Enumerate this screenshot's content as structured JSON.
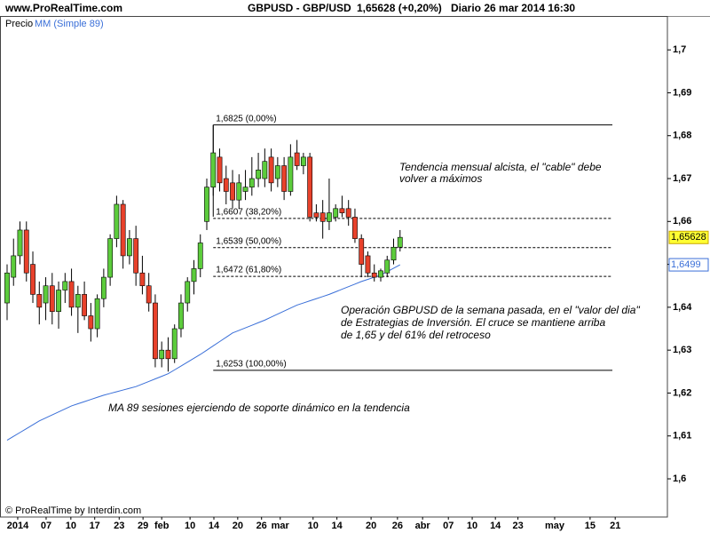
{
  "header": {
    "site": "www.ProRealTime.com",
    "instrument": "GBPUSD - GBP/USD",
    "quote": "1,65628 (+0,20%)",
    "period": "Diario  26 mar 2014 16:30"
  },
  "footer": "© ProRealTime by Interdin.com",
  "chart_data": {
    "type": "candlestick",
    "legend": {
      "price": "Precio",
      "ma": "MM (Simple 89)"
    },
    "x": [
      0,
      1,
      2,
      3,
      4,
      5,
      6,
      7,
      8,
      9,
      10,
      11,
      12,
      13,
      14,
      15,
      16,
      17,
      18,
      19,
      20,
      21,
      22,
      23,
      24,
      25,
      26,
      27,
      28,
      29,
      30,
      31,
      32,
      33,
      34,
      35,
      36,
      37,
      38,
      39,
      40,
      41,
      42,
      43,
      44,
      45,
      46,
      47,
      48,
      49,
      50,
      51,
      52,
      53,
      54,
      55,
      56,
      57,
      58,
      59,
      60,
      61
    ],
    "open": [
      1.641,
      1.647,
      1.652,
      1.658,
      1.65,
      1.643,
      1.641,
      1.645,
      1.639,
      1.644,
      1.646,
      1.64,
      1.643,
      1.638,
      1.635,
      1.642,
      1.647,
      1.656,
      1.664,
      1.652,
      1.656,
      1.648,
      1.645,
      1.641,
      1.628,
      1.63,
      1.628,
      1.635,
      1.641,
      1.646,
      1.649,
      1.66,
      1.668,
      1.675,
      1.67,
      1.669,
      1.665,
      1.667,
      1.668,
      1.67,
      1.67,
      1.675,
      1.67,
      1.673,
      1.667,
      1.676,
      1.673,
      1.675,
      1.662,
      1.662,
      1.66,
      1.661,
      1.663,
      1.663,
      1.661,
      1.656,
      1.652,
      1.648,
      1.647,
      1.648,
      1.651,
      1.654
    ],
    "high": [
      1.65,
      1.656,
      1.66,
      1.66,
      1.653,
      1.646,
      1.647,
      1.648,
      1.646,
      1.648,
      1.649,
      1.645,
      1.646,
      1.641,
      1.643,
      1.649,
      1.657,
      1.666,
      1.665,
      1.658,
      1.659,
      1.652,
      1.648,
      1.643,
      1.632,
      1.633,
      1.636,
      1.643,
      1.647,
      1.651,
      1.657,
      1.67,
      1.6825,
      1.677,
      1.673,
      1.672,
      1.671,
      1.672,
      1.675,
      1.676,
      1.677,
      1.677,
      1.675,
      1.675,
      1.678,
      1.679,
      1.676,
      1.676,
      1.664,
      1.665,
      1.67,
      1.664,
      1.666,
      1.665,
      1.663,
      1.657,
      1.653,
      1.65,
      1.649,
      1.652,
      1.656,
      1.658
    ],
    "low": [
      1.637,
      1.645,
      1.65,
      1.646,
      1.641,
      1.636,
      1.637,
      1.636,
      1.635,
      1.641,
      1.638,
      1.634,
      1.637,
      1.632,
      1.633,
      1.64,
      1.645,
      1.654,
      1.649,
      1.65,
      1.645,
      1.643,
      1.639,
      1.626,
      1.626,
      1.625,
      1.627,
      1.633,
      1.639,
      1.643,
      1.647,
      1.658,
      1.666,
      1.667,
      1.664,
      1.663,
      1.663,
      1.665,
      1.666,
      1.668,
      1.668,
      1.667,
      1.668,
      1.665,
      1.666,
      1.672,
      1.671,
      1.66,
      1.66,
      1.656,
      1.658,
      1.66,
      1.661,
      1.659,
      1.655,
      1.647,
      1.647,
      1.646,
      1.646,
      1.647,
      1.65,
      1.653
    ],
    "close": [
      1.648,
      1.652,
      1.658,
      1.648,
      1.643,
      1.64,
      1.645,
      1.639,
      1.644,
      1.646,
      1.64,
      1.643,
      1.638,
      1.635,
      1.642,
      1.647,
      1.656,
      1.664,
      1.652,
      1.656,
      1.648,
      1.645,
      1.641,
      1.628,
      1.63,
      1.628,
      1.635,
      1.641,
      1.646,
      1.649,
      1.655,
      1.668,
      1.676,
      1.669,
      1.667,
      1.665,
      1.669,
      1.668,
      1.67,
      1.672,
      1.674,
      1.669,
      1.673,
      1.667,
      1.675,
      1.673,
      1.675,
      1.661,
      1.661,
      1.66,
      1.662,
      1.663,
      1.662,
      1.661,
      1.656,
      1.65,
      1.648,
      1.647,
      1.6485,
      1.651,
      1.654,
      1.6563
    ],
    "up_color": "#5ccc3c",
    "down_color": "#e8412b",
    "ma": {
      "color": "#3a6fd8",
      "values": [
        1.609,
        1.6099,
        1.6108,
        1.6117,
        1.6126,
        1.6135,
        1.6142,
        1.6149,
        1.6156,
        1.6163,
        1.617,
        1.6175,
        1.618,
        1.6185,
        1.619,
        1.6195,
        1.6199,
        1.6203,
        1.6207,
        1.6211,
        1.6215,
        1.6221,
        1.6227,
        1.6233,
        1.6239,
        1.6245,
        1.6254,
        1.6263,
        1.6272,
        1.6281,
        1.629,
        1.63,
        1.631,
        1.632,
        1.633,
        1.634,
        1.6346,
        1.6352,
        1.6358,
        1.6364,
        1.637,
        1.6377,
        1.6384,
        1.6391,
        1.6398,
        1.6405,
        1.641,
        1.6415,
        1.642,
        1.6425,
        1.643,
        1.6436,
        1.6442,
        1.6448,
        1.6454,
        1.646,
        1.6465,
        1.647,
        1.6475,
        1.6483,
        1.6491,
        1.6499
      ]
    },
    "fib_levels": [
      {
        "value": 1.6825,
        "label": "1,6825 (0,00%)"
      },
      {
        "value": 1.6607,
        "label": "1,6607 (38,20%)"
      },
      {
        "value": 1.6539,
        "label": "1,6539 (50,00%)"
      },
      {
        "value": 1.6472,
        "label": "1,6472 (61,80%)"
      },
      {
        "value": 1.6253,
        "label": "1,6253 (100,00%)"
      }
    ],
    "price_tags": [
      {
        "value": 1.65628,
        "label": "1,65628",
        "color": "#ffff33"
      },
      {
        "value": 1.6499,
        "label": "1,6499",
        "color": "#3a6fd8"
      }
    ],
    "xlim": [
      -1.1,
      102.5
    ],
    "ylim": [
      1.5911,
      1.7079
    ],
    "yticks": [
      {
        "value": 1.6,
        "label": "1,6"
      },
      {
        "value": 1.61,
        "label": "1,61"
      },
      {
        "value": 1.62,
        "label": "1,62"
      },
      {
        "value": 1.63,
        "label": "1,63"
      },
      {
        "value": 1.64,
        "label": "1,64"
      },
      {
        "value": 1.65,
        "label": "1,65"
      },
      {
        "value": 1.66,
        "label": "1,66"
      },
      {
        "value": 1.67,
        "label": "1,67"
      },
      {
        "value": 1.68,
        "label": "1,68"
      },
      {
        "value": 1.69,
        "label": "1,69"
      },
      {
        "value": 1.7,
        "label": "1,7"
      }
    ],
    "xticks": [
      {
        "value": 1.65,
        "label": "2014"
      },
      {
        "value": 6.06,
        "label": "07"
      },
      {
        "value": 9.9,
        "label": "10"
      },
      {
        "value": 13.6,
        "label": "17"
      },
      {
        "value": 17.4,
        "label": "23"
      },
      {
        "value": 21.1,
        "label": "29"
      },
      {
        "value": 24,
        "label": "feb"
      },
      {
        "value": 28.4,
        "label": "10"
      },
      {
        "value": 32.1,
        "label": "14"
      },
      {
        "value": 35.8,
        "label": "20"
      },
      {
        "value": 39.5,
        "label": "26"
      },
      {
        "value": 42.4,
        "label": "mar"
      },
      {
        "value": 47.5,
        "label": "10"
      },
      {
        "value": 51.2,
        "label": "14"
      },
      {
        "value": 56.5,
        "label": "20"
      },
      {
        "value": 60.6,
        "label": "26"
      },
      {
        "value": 64.5,
        "label": "abr"
      },
      {
        "value": 68.5,
        "label": "07"
      },
      {
        "value": 72.2,
        "label": "10"
      },
      {
        "value": 75.8,
        "label": "14"
      },
      {
        "value": 79.3,
        "label": "23"
      },
      {
        "value": 85,
        "label": "may"
      },
      {
        "value": 90.5,
        "label": "15"
      },
      {
        "value": 94.4,
        "label": "21"
      }
    ],
    "annotations": [
      "Tendencia mensual alcista, el \"cable\" debe",
      "volver a máximos",
      "Operación GBPUSD de la semana pasada, en el \"valor del dia\"",
      "de Estrategias de Inversión. El cruce se mantiene arriba",
      "de 1,65 y del 61% del retroceso",
      "MA 89 sesiones ejerciendo de soporte dinámico en la tendencia"
    ]
  }
}
